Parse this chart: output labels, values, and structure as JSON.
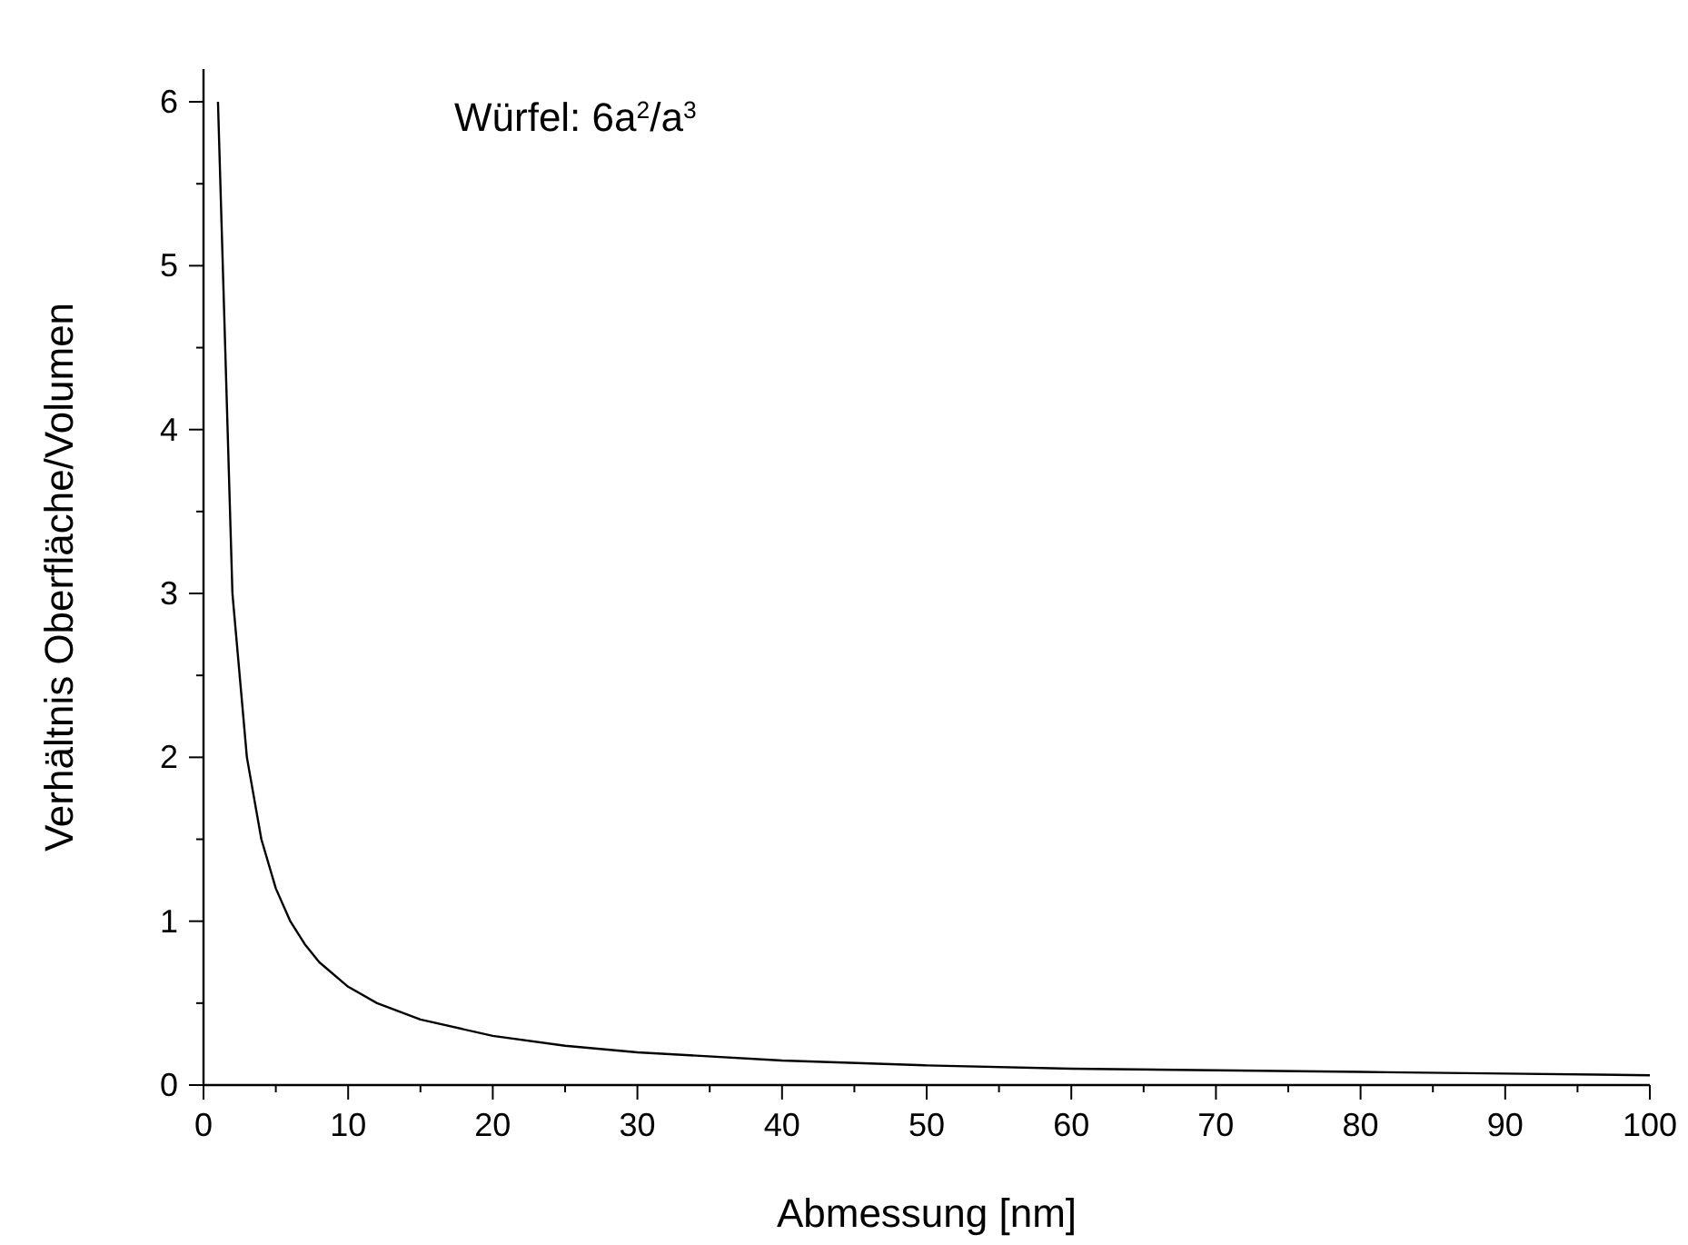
{
  "chart_data": {
    "type": "line",
    "xlabel": "Abmessung [nm]",
    "ylabel": "Verhältnis Oberfläche/Volumen",
    "annotations": [
      "Würfel: 6a$^{2}$/a$^{3}$"
    ],
    "x": [
      1,
      2,
      3,
      4,
      5,
      6,
      7,
      8,
      10,
      12,
      15,
      20,
      25,
      30,
      40,
      50,
      60,
      70,
      80,
      90,
      100
    ],
    "series": [
      {
        "color": "#000000",
        "values": [
          6,
          3,
          2,
          1.5,
          1.2,
          1,
          0.86,
          0.75,
          0.6,
          0.5,
          0.4,
          0.3,
          0.24,
          0.2,
          0.15,
          0.12,
          0.1,
          0.09,
          0.08,
          0.07,
          0.06
        ]
      }
    ],
    "xlim": [
      0,
      100
    ],
    "ylim": [
      0,
      6.2
    ],
    "xticks": [
      0,
      {
        "value": 5,
        "label": null
      },
      10,
      {
        "value": 15,
        "label": null
      },
      20,
      {
        "value": 25,
        "label": null
      },
      30,
      {
        "value": 35,
        "label": null
      },
      40,
      {
        "value": 45,
        "label": null
      },
      50,
      {
        "value": 55,
        "label": null
      },
      60,
      {
        "value": 65,
        "label": null
      },
      70,
      {
        "value": 75,
        "label": null
      },
      80,
      {
        "value": 85,
        "label": null
      },
      90,
      {
        "value": 95,
        "label": null
      },
      100
    ],
    "yticks": [
      0,
      {
        "value": 0.5,
        "label": null
      },
      1,
      {
        "value": 1.5,
        "label": null
      },
      2,
      {
        "value": 2.5,
        "label": null
      },
      3,
      {
        "value": 3.5,
        "label": null
      },
      4,
      {
        "value": 4.5,
        "label": null
      },
      5,
      {
        "value": 5.5,
        "label": null
      },
      6
    ],
    "grid": false,
    "marker": "none",
    "line_style": "solid"
  }
}
